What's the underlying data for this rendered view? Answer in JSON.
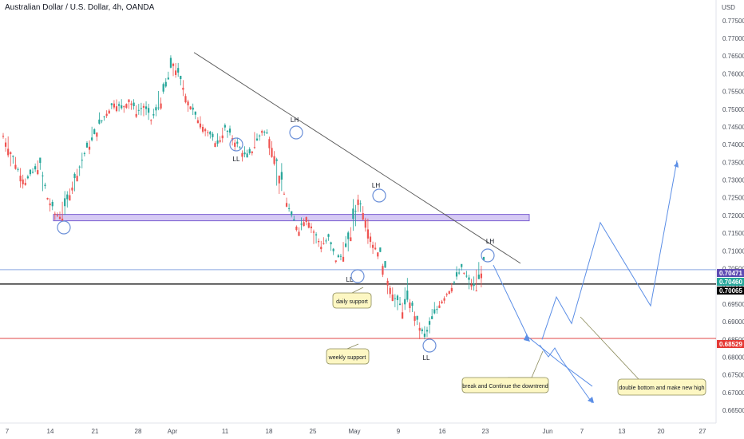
{
  "title": "Australian Dollar / U.S. Dollar, 4h, OANDA",
  "currency": "USD",
  "chart_data": {
    "type": "line",
    "y_ticks": [
      "0.77500",
      "0.77000",
      "0.76500",
      "0.76000",
      "0.75500",
      "0.75000",
      "0.74500",
      "0.74000",
      "0.73500",
      "0.73000",
      "0.72500",
      "0.72000",
      "0.71500",
      "0.71000",
      "0.70500",
      "0.70000",
      "0.69500",
      "0.69000",
      "0.68500",
      "0.68000",
      "0.67500",
      "0.67000",
      "0.66500"
    ],
    "ylim": [
      0.663,
      0.779
    ],
    "x_ticks": [
      "7",
      "14",
      "21",
      "28",
      "Apr",
      "11",
      "18",
      "25",
      "May",
      "9",
      "16",
      "23",
      "Jun",
      "7",
      "13",
      "20",
      "27"
    ],
    "price_levels": [
      {
        "value": 0.70471,
        "label": "0.70471",
        "color": "#8aa6e0",
        "badge": "#5e4bb3"
      },
      {
        "value": 0.7046,
        "label": "0.70460",
        "color": "#2e9e6e",
        "badge": "#26a69a"
      },
      {
        "value": 0.70065,
        "label": "0.70065",
        "color": "#000000",
        "badge": "#000000"
      },
      {
        "value": 0.68529,
        "label": "0.68529",
        "color": "#e04545",
        "badge": "#e53935"
      }
    ],
    "price_path": [
      [
        0.7425,
        0.7445,
        0.7355,
        0.738
      ],
      [
        0.738,
        0.739,
        0.731,
        0.733
      ],
      [
        0.733,
        0.7345,
        0.727,
        0.7295
      ],
      [
        0.7295,
        0.7335,
        0.728,
        0.732
      ],
      [
        0.732,
        0.737,
        0.73,
        0.734
      ],
      [
        0.734,
        0.735,
        0.723,
        0.725
      ],
      [
        0.725,
        0.7265,
        0.719,
        0.7205
      ],
      [
        0.7205,
        0.7225,
        0.7175,
        0.7195
      ],
      [
        0.7195,
        0.728,
        0.7185,
        0.7265
      ],
      [
        0.7265,
        0.734,
        0.725,
        0.732
      ],
      [
        0.732,
        0.739,
        0.73,
        0.7375
      ],
      [
        0.7375,
        0.743,
        0.736,
        0.741
      ],
      [
        0.741,
        0.747,
        0.739,
        0.7455
      ],
      [
        0.7455,
        0.7505,
        0.7435,
        0.749
      ],
      [
        0.749,
        0.7535,
        0.747,
        0.752
      ],
      [
        0.752,
        0.7545,
        0.7485,
        0.75
      ],
      [
        0.75,
        0.755,
        0.748,
        0.753
      ],
      [
        0.753,
        0.7545,
        0.7475,
        0.749
      ],
      [
        0.749,
        0.7525,
        0.747,
        0.751
      ],
      [
        0.751,
        0.753,
        0.7455,
        0.747
      ],
      [
        0.747,
        0.752,
        0.745,
        0.7505
      ],
      [
        0.7505,
        0.758,
        0.749,
        0.756
      ],
      [
        0.756,
        0.7665,
        0.754,
        0.763
      ],
      [
        0.763,
        0.765,
        0.756,
        0.758
      ],
      [
        0.758,
        0.7595,
        0.751,
        0.7525
      ],
      [
        0.7525,
        0.754,
        0.746,
        0.748
      ],
      [
        0.748,
        0.75,
        0.744,
        0.7455
      ],
      [
        0.7455,
        0.747,
        0.741,
        0.7425
      ],
      [
        0.7425,
        0.744,
        0.7385,
        0.74
      ],
      [
        0.74,
        0.746,
        0.739,
        0.7445
      ],
      [
        0.7445,
        0.7465,
        0.74,
        0.742
      ],
      [
        0.742,
        0.744,
        0.7375,
        0.739
      ],
      [
        0.739,
        0.7405,
        0.7345,
        0.736
      ],
      [
        0.736,
        0.741,
        0.735,
        0.7395
      ],
      [
        0.7395,
        0.7455,
        0.7385,
        0.744
      ],
      [
        0.744,
        0.746,
        0.741,
        0.7425
      ],
      [
        0.7425,
        0.7435,
        0.733,
        0.735
      ],
      [
        0.735,
        0.7365,
        0.724,
        0.726
      ],
      [
        0.726,
        0.727,
        0.718,
        0.7195
      ],
      [
        0.7195,
        0.721,
        0.714,
        0.716
      ],
      [
        0.716,
        0.7225,
        0.715,
        0.72
      ],
      [
        0.72,
        0.7215,
        0.714,
        0.7155
      ],
      [
        0.7155,
        0.717,
        0.71,
        0.7115
      ],
      [
        0.7115,
        0.715,
        0.7075,
        0.7135
      ],
      [
        0.7135,
        0.715,
        0.706,
        0.7075
      ],
      [
        0.7075,
        0.7105,
        0.7055,
        0.709
      ],
      [
        0.709,
        0.716,
        0.708,
        0.7145
      ],
      [
        0.7145,
        0.7275,
        0.7135,
        0.725
      ],
      [
        0.725,
        0.727,
        0.718,
        0.7195
      ],
      [
        0.7195,
        0.7205,
        0.71,
        0.712
      ],
      [
        0.712,
        0.7135,
        0.707,
        0.709
      ],
      [
        0.709,
        0.7105,
        0.7,
        0.702
      ],
      [
        0.702,
        0.7035,
        0.6945,
        0.6965
      ],
      [
        0.6965,
        0.699,
        0.6915,
        0.6935
      ],
      [
        0.6935,
        0.7045,
        0.692,
        0.696
      ],
      [
        0.696,
        0.6975,
        0.688,
        0.69
      ],
      [
        0.69,
        0.691,
        0.684,
        0.6855
      ],
      [
        0.6855,
        0.692,
        0.6845,
        0.6905
      ],
      [
        0.6905,
        0.6965,
        0.689,
        0.695
      ],
      [
        0.695,
        0.6995,
        0.6935,
        0.698
      ],
      [
        0.698,
        0.703,
        0.6965,
        0.701
      ],
      [
        0.701,
        0.7065,
        0.6995,
        0.705
      ],
      [
        0.705,
        0.706,
        0.7,
        0.7015
      ],
      [
        0.7015,
        0.704,
        0.6975,
        0.699
      ],
      [
        0.699,
        0.7085,
        0.6985,
        0.707
      ],
      [
        0.707,
        0.708,
        0.7035,
        0.7046
      ]
    ],
    "downtrend_line": [
      [
        0.766,
        0
      ],
      [
        0.7065,
        1
      ]
    ],
    "zone": [
      0.7185,
      0.7203
    ],
    "projection": [
      0.706,
      0.6858,
      0.6788,
      0.6718
    ],
    "scenario": [
      0.685,
      0.697,
      0.6895,
      0.718,
      0.6945,
      0.7355
    ]
  },
  "annotations": {
    "ll_1": "LL",
    "lh_1": "LH",
    "lh_2": "LH",
    "ll_2": "LL",
    "lh_3": "LH",
    "ll_3": "LL"
  },
  "notes": {
    "daily": "daily support",
    "weekly": "weekly support",
    "break": "break and Continue the downtrend",
    "double": "double bottom and make new high"
  },
  "colors": {
    "up": "#26a69a",
    "down": "#ef5350",
    "trend": "#555555",
    "zone_fill": "#c8b8f0",
    "zone_stroke": "#7b5fd1",
    "circle": "#6a8fd8",
    "projection": "#5b8ee6",
    "note_fill": "#fdf7c3",
    "note_stroke": "#8a8a5a"
  }
}
